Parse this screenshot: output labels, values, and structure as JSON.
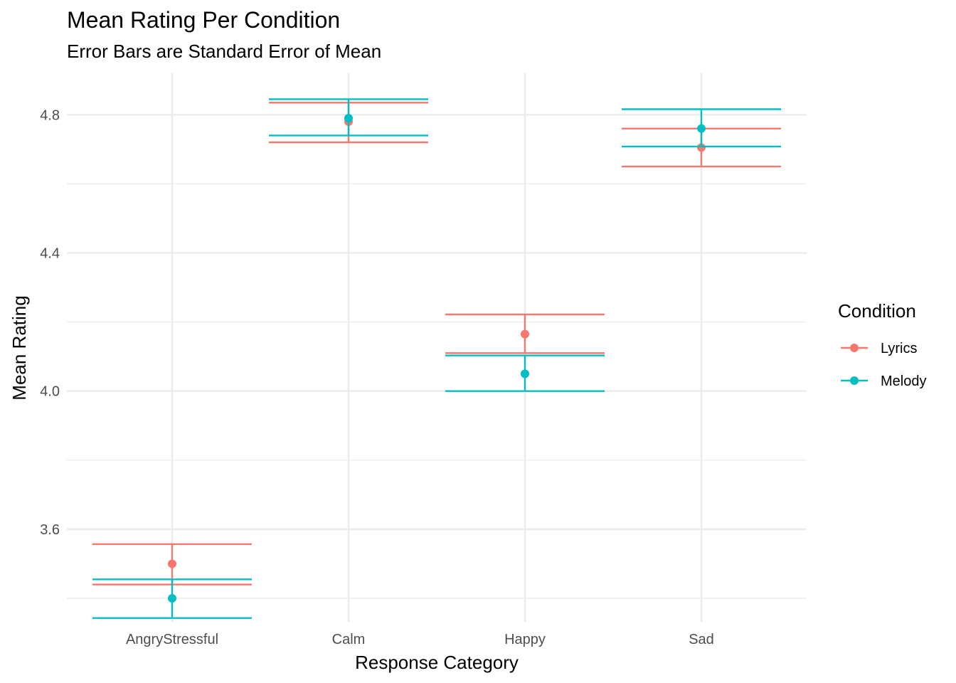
{
  "chart_data": {
    "type": "scatter",
    "title": "Mean Rating Per Condition",
    "subtitle": "Error Bars are Standard Error of Mean",
    "xlabel": "Response Category",
    "ylabel": "Mean Rating",
    "categories": [
      "AngryStressful",
      "Calm",
      "Happy",
      "Sad"
    ],
    "ylim": [
      3.33,
      4.92
    ],
    "yticks": [
      3.6,
      4.0,
      4.4,
      4.8
    ],
    "ytick_labels": [
      "3.6",
      "4.0",
      "4.4",
      "4.8"
    ],
    "grid": true,
    "legend": {
      "title": "Condition",
      "position": "right"
    },
    "series": [
      {
        "name": "Lyrics",
        "color": "#F8766D",
        "values": [
          3.5,
          4.78,
          4.165,
          4.705
        ],
        "error_low": [
          3.44,
          4.72,
          4.11,
          4.65
        ],
        "error_high": [
          3.557,
          4.835,
          4.222,
          4.76
        ]
      },
      {
        "name": "Melody",
        "color": "#00BFC4",
        "values": [
          3.4,
          4.79,
          4.05,
          4.76
        ],
        "error_low": [
          3.343,
          4.74,
          4.0,
          4.708
        ],
        "error_high": [
          3.455,
          4.845,
          4.103,
          4.816
        ]
      }
    ]
  }
}
